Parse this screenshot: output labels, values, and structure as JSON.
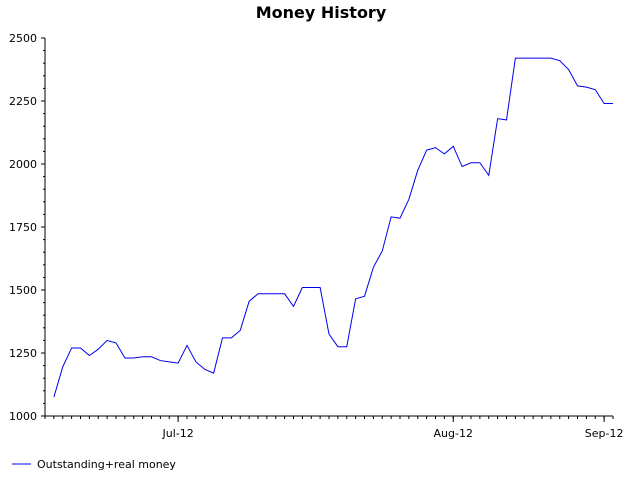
{
  "chart_data": {
    "type": "line",
    "title": "Money History",
    "xlabel": "",
    "ylabel": "",
    "ylim": [
      1000,
      2500
    ],
    "yticks": [
      1000,
      1250,
      1500,
      1750,
      2000,
      2250,
      2500
    ],
    "xticks": [
      {
        "label": "Jul-12",
        "x": 14
      },
      {
        "label": "Aug-12",
        "x": 45
      },
      {
        "label": "Sep-12",
        "x": 62
      }
    ],
    "xlim": [
      -1,
      63
    ],
    "grid": false,
    "legend_position": "bottom-left",
    "series": [
      {
        "name": "Outstanding+real money",
        "color": "#0000ee",
        "x": [
          0,
          1,
          2,
          3,
          4,
          5,
          6,
          7,
          8,
          9,
          10,
          11,
          12,
          13,
          14,
          15,
          16,
          17,
          18,
          19,
          20,
          21,
          22,
          23,
          24,
          25,
          26,
          27,
          28,
          29,
          30,
          31,
          32,
          33,
          34,
          35,
          36,
          37,
          38,
          39,
          40,
          41,
          42,
          43,
          44,
          45,
          46,
          47,
          48,
          49,
          50,
          51,
          52,
          53,
          54,
          55,
          56,
          57,
          58,
          59,
          60,
          61,
          62,
          63
        ],
        "values": [
          1075,
          1195,
          1270,
          1270,
          1240,
          1265,
          1300,
          1290,
          1230,
          1230,
          1235,
          1235,
          1220,
          1215,
          1210,
          1280,
          1215,
          1185,
          1170,
          1310,
          1310,
          1340,
          1455,
          1485,
          1485,
          1485,
          1485,
          1435,
          1510,
          1510,
          1510,
          1325,
          1275,
          1275,
          1465,
          1475,
          1590,
          1655,
          1790,
          1785,
          1860,
          1975,
          2055,
          2065,
          2040,
          2070,
          1990,
          2005,
          2005,
          1955,
          2180,
          2175,
          2420,
          2420,
          2420,
          2420,
          2420,
          2410,
          2375,
          2310,
          2305,
          2295,
          2240,
          2240
        ]
      }
    ]
  }
}
